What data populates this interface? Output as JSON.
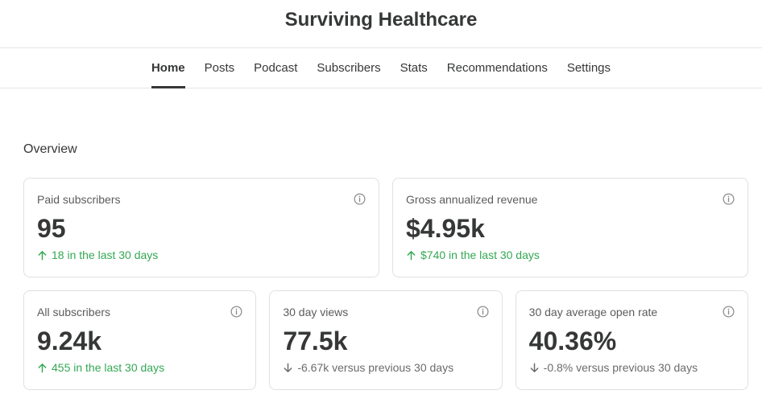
{
  "app": {
    "title": "Surviving Healthcare"
  },
  "nav": {
    "tabs": [
      {
        "label": "Home",
        "active": true
      },
      {
        "label": "Posts"
      },
      {
        "label": "Podcast"
      },
      {
        "label": "Subscribers"
      },
      {
        "label": "Stats"
      },
      {
        "label": "Recommendations"
      },
      {
        "label": "Settings"
      }
    ]
  },
  "overview": {
    "title": "Overview",
    "cards": [
      {
        "label": "Paid subscribers",
        "value": "95",
        "change": "18 in the last 30 days",
        "trend": "up",
        "icon": "info-icon"
      },
      {
        "label": "Gross annualized revenue",
        "value": "$4.95k",
        "change": "$740 in the last 30 days",
        "trend": "up",
        "icon": "info-icon"
      },
      {
        "label": "All subscribers",
        "value": "9.24k",
        "change": "455 in the last 30 days",
        "trend": "up",
        "icon": "info-icon"
      },
      {
        "label": "30 day views",
        "value": "77.5k",
        "change": "-6.67k versus previous 30 days",
        "trend": "down",
        "icon": "info-icon"
      },
      {
        "label": "30 day average open rate",
        "value": "40.36%",
        "change": "-0.8% versus previous 30 days",
        "trend": "down",
        "icon": "info-icon"
      }
    ]
  },
  "colors": {
    "up": "#34a853",
    "down": "#6b6b6b",
    "text": "#363737",
    "border": "#e0e0e0"
  }
}
